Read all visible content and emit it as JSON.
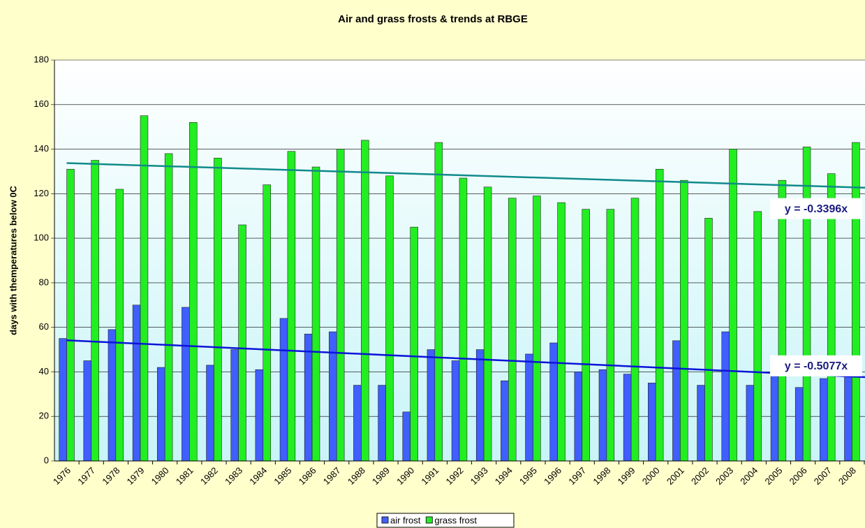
{
  "chart_data": {
    "type": "bar",
    "title": "Air and grass frosts & trends at RBGE",
    "y_label": "days with themperatures below 0C",
    "categories": [
      "1976",
      "1977",
      "1978",
      "1979",
      "1980",
      "1981",
      "1982",
      "1983",
      "1984",
      "1985",
      "1986",
      "1987",
      "1988",
      "1989",
      "1990",
      "1991",
      "1992",
      "1993",
      "1994",
      "1995",
      "1996",
      "1997",
      "1998",
      "1999",
      "2000",
      "2001",
      "2002",
      "2003",
      "2004",
      "2005",
      "2006",
      "2007",
      "2008"
    ],
    "series": [
      {
        "name": "air frost",
        "color": "#3f5fff",
        "values": [
          55,
          45,
          59,
          70,
          42,
          69,
          43,
          50,
          41,
          64,
          57,
          58,
          34,
          34,
          22,
          50,
          45,
          50,
          36,
          48,
          53,
          40,
          41,
          39,
          35,
          54,
          34,
          58,
          34,
          45,
          33,
          37,
          44
        ],
        "trendline": {
          "label": "y = -0.5077x",
          "color": "#0a14d8"
        }
      },
      {
        "name": "grass frost",
        "color": "#22ee22",
        "values": [
          131,
          135,
          122,
          155,
          138,
          152,
          136,
          106,
          124,
          139,
          132,
          140,
          144,
          128,
          105,
          143,
          127,
          123,
          118,
          119,
          116,
          113,
          113,
          118,
          131,
          126,
          109,
          140,
          112,
          126,
          141,
          129,
          143
        ],
        "trendline": {
          "label": "y = -0.3396x",
          "color": "#0f8a8a"
        }
      }
    ],
    "ylim": [
      0,
      180
    ],
    "yticks": [
      0,
      20,
      40,
      60,
      80,
      100,
      120,
      140,
      160,
      180
    ],
    "grid": true,
    "legend": "bottom"
  }
}
